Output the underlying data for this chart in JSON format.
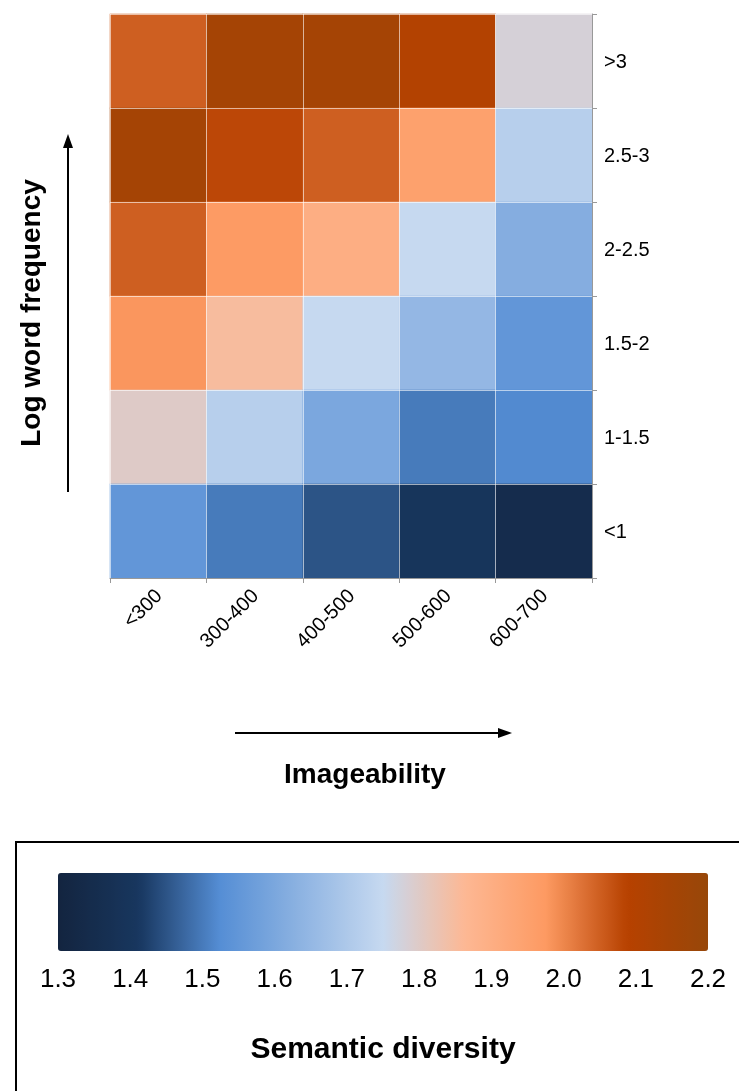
{
  "chart_data": {
    "type": "heatmap",
    "xlabel": "Imageability",
    "ylabel": "Log word frequency",
    "clabel": "Semantic diversity",
    "categories": [
      "<300",
      "300-400",
      "400-500",
      "500-600",
      "600-700"
    ],
    "y_categories": [
      ">3",
      "2.5-3",
      "2-2.5",
      "1.5-2",
      "1-1.5",
      "<1"
    ],
    "cells": [
      [
        2.05,
        2.15,
        2.15,
        2.1,
        1.78
      ],
      [
        2.15,
        2.08,
        2.05,
        1.95,
        1.72
      ],
      [
        2.05,
        1.97,
        1.9,
        1.75,
        1.62
      ],
      [
        1.98,
        1.85,
        1.75,
        1.65,
        1.55
      ],
      [
        1.8,
        1.72,
        1.6,
        1.5,
        1.52
      ],
      [
        1.55,
        1.5,
        1.45,
        1.4,
        1.35
      ]
    ],
    "clim": [
      1.3,
      2.2
    ],
    "cticks": [
      1.3,
      1.4,
      1.5,
      1.6,
      1.7,
      1.8,
      1.9,
      {
        "value": 2,
        "label": "2.0"
      },
      2.1,
      2.2
    ],
    "colors": [
      "#13243f",
      "#18375f",
      "#558ed5",
      "#8eb3e2",
      "#c6d9f0",
      "#fdb894",
      "#fd9a62",
      "#b74100",
      "#974709"
    ],
    "grid": true
  }
}
